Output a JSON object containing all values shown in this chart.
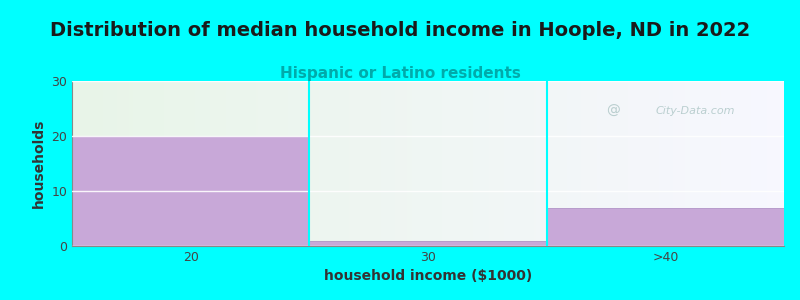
{
  "title": "Distribution of median household income in Hoople, ND in 2022",
  "subtitle": "Hispanic or Latino residents",
  "categories": [
    "20",
    "30",
    ">40"
  ],
  "values": [
    20,
    1,
    7
  ],
  "bar_color": "#c8a8d8",
  "bar_edgecolor": "#a888c0",
  "background_color": "#00ffff",
  "plot_bg_gradient_left": "#e8f5e8",
  "plot_bg_gradient_right": "#f8f8ff",
  "xlabel": "household income ($1000)",
  "ylabel": "households",
  "ylim": [
    0,
    30
  ],
  "yticks": [
    0,
    10,
    20,
    30
  ],
  "title_fontsize": 14,
  "subtitle_fontsize": 11,
  "subtitle_color": "#00aaaa",
  "xlabel_fontsize": 10,
  "ylabel_fontsize": 10,
  "watermark": "City-Data.com",
  "watermark_color": "#b0c8c8"
}
